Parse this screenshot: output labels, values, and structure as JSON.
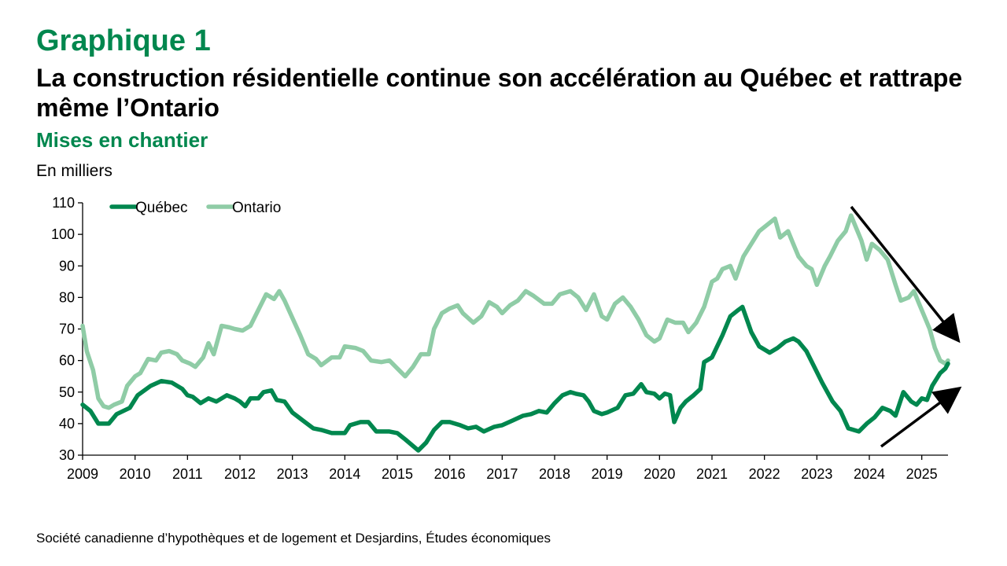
{
  "header": {
    "graph_number": "Graphique 1",
    "title": "La construction résidentielle continue son accélération au Québec et rattrape même l’Ontario",
    "subtitle": "Mises en chantier",
    "unit": "En milliers"
  },
  "source": "Société canadienne d’hypothèques et de logement et Desjardins, Études économiques",
  "colors": {
    "quebec": "#00874e",
    "ontario": "#8fcca6",
    "axis": "#000000",
    "arrow": "#000000"
  },
  "chart_data": {
    "type": "line",
    "ylim": [
      30,
      110
    ],
    "yticks": [
      30,
      40,
      50,
      60,
      70,
      80,
      90,
      100,
      110
    ],
    "xlim": [
      2009,
      2025.5
    ],
    "xticks": [
      2009,
      2010,
      2011,
      2012,
      2013,
      2014,
      2015,
      2016,
      2017,
      2018,
      2019,
      2020,
      2021,
      2022,
      2023,
      2024,
      2025
    ],
    "grid": false,
    "legend": "top-left",
    "annotations": [
      "downward-arrow-to-ontario-end",
      "upward-arrow-to-quebec-end"
    ],
    "series": [
      {
        "name": "Québec",
        "color": "#00874e",
        "points": [
          [
            2009.0,
            46
          ],
          [
            2009.15,
            44
          ],
          [
            2009.3,
            40
          ],
          [
            2009.5,
            40
          ],
          [
            2009.65,
            43
          ],
          [
            2009.9,
            45
          ],
          [
            2010.05,
            49
          ],
          [
            2010.3,
            52
          ],
          [
            2010.5,
            53.5
          ],
          [
            2010.7,
            53
          ],
          [
            2010.9,
            51
          ],
          [
            2011.0,
            49
          ],
          [
            2011.1,
            48.5
          ],
          [
            2011.25,
            46.5
          ],
          [
            2011.4,
            48
          ],
          [
            2011.55,
            47
          ],
          [
            2011.75,
            49
          ],
          [
            2011.9,
            48
          ],
          [
            2012.0,
            47
          ],
          [
            2012.1,
            45.5
          ],
          [
            2012.2,
            48
          ],
          [
            2012.35,
            48
          ],
          [
            2012.45,
            50
          ],
          [
            2012.6,
            50.5
          ],
          [
            2012.7,
            47.5
          ],
          [
            2012.85,
            47
          ],
          [
            2013.0,
            43.5
          ],
          [
            2013.2,
            41
          ],
          [
            2013.4,
            38.5
          ],
          [
            2013.55,
            38
          ],
          [
            2013.75,
            37
          ],
          [
            2014.0,
            37
          ],
          [
            2014.1,
            39.5
          ],
          [
            2014.3,
            40.5
          ],
          [
            2014.45,
            40.5
          ],
          [
            2014.6,
            37.5
          ],
          [
            2014.85,
            37.5
          ],
          [
            2015.0,
            37
          ],
          [
            2015.15,
            35
          ],
          [
            2015.4,
            31.5
          ],
          [
            2015.55,
            34
          ],
          [
            2015.7,
            38
          ],
          [
            2015.85,
            40.5
          ],
          [
            2016.0,
            40.5
          ],
          [
            2016.2,
            39.5
          ],
          [
            2016.35,
            38.5
          ],
          [
            2016.5,
            39
          ],
          [
            2016.65,
            37.5
          ],
          [
            2016.85,
            39
          ],
          [
            2017.0,
            39.5
          ],
          [
            2017.2,
            41
          ],
          [
            2017.4,
            42.5
          ],
          [
            2017.55,
            43
          ],
          [
            2017.7,
            44
          ],
          [
            2017.85,
            43.5
          ],
          [
            2018.0,
            46.5
          ],
          [
            2018.15,
            49
          ],
          [
            2018.3,
            50
          ],
          [
            2018.4,
            49.5
          ],
          [
            2018.55,
            49
          ],
          [
            2018.65,
            47
          ],
          [
            2018.75,
            44
          ],
          [
            2018.9,
            43
          ],
          [
            2019.0,
            43.5
          ],
          [
            2019.2,
            45
          ],
          [
            2019.35,
            49
          ],
          [
            2019.5,
            49.5
          ],
          [
            2019.65,
            52.5
          ],
          [
            2019.75,
            50
          ],
          [
            2019.9,
            49.5
          ],
          [
            2020.0,
            48
          ],
          [
            2020.1,
            49.5
          ],
          [
            2020.2,
            49
          ],
          [
            2020.28,
            40.5
          ],
          [
            2020.4,
            45
          ],
          [
            2020.5,
            47
          ],
          [
            2020.65,
            49
          ],
          [
            2020.78,
            51
          ],
          [
            2020.85,
            59.5
          ],
          [
            2021.0,
            61
          ],
          [
            2021.2,
            68
          ],
          [
            2021.35,
            74
          ],
          [
            2021.5,
            76
          ],
          [
            2021.58,
            77
          ],
          [
            2021.75,
            69
          ],
          [
            2021.9,
            64.5
          ],
          [
            2022.0,
            63.5
          ],
          [
            2022.1,
            62.5
          ],
          [
            2022.25,
            64
          ],
          [
            2022.4,
            66
          ],
          [
            2022.55,
            67
          ],
          [
            2022.65,
            66
          ],
          [
            2022.8,
            63
          ],
          [
            2022.95,
            58
          ],
          [
            2023.1,
            53
          ],
          [
            2023.3,
            47
          ],
          [
            2023.45,
            44
          ],
          [
            2023.6,
            38.5
          ],
          [
            2023.8,
            37.5
          ],
          [
            2023.95,
            40
          ],
          [
            2024.1,
            42
          ],
          [
            2024.25,
            45
          ],
          [
            2024.4,
            44
          ],
          [
            2024.5,
            42.5
          ],
          [
            2024.65,
            50
          ],
          [
            2024.8,
            47
          ],
          [
            2024.9,
            46
          ],
          [
            2025.0,
            48
          ],
          [
            2025.1,
            47.5
          ],
          [
            2025.2,
            52
          ],
          [
            2025.35,
            56
          ],
          [
            2025.45,
            57.5
          ],
          [
            2025.5,
            59
          ]
        ]
      },
      {
        "name": "Ontario",
        "color": "#8fcca6",
        "points": [
          [
            2009.0,
            71
          ],
          [
            2009.08,
            63
          ],
          [
            2009.2,
            57
          ],
          [
            2009.3,
            48
          ],
          [
            2009.4,
            45.5
          ],
          [
            2009.5,
            45
          ],
          [
            2009.6,
            46
          ],
          [
            2009.75,
            47
          ],
          [
            2009.85,
            52
          ],
          [
            2010.0,
            55
          ],
          [
            2010.1,
            56
          ],
          [
            2010.25,
            60.5
          ],
          [
            2010.4,
            60
          ],
          [
            2010.5,
            62.5
          ],
          [
            2010.65,
            63
          ],
          [
            2010.8,
            62
          ],
          [
            2010.9,
            60
          ],
          [
            2011.05,
            59
          ],
          [
            2011.15,
            58
          ],
          [
            2011.3,
            61
          ],
          [
            2011.4,
            65.5
          ],
          [
            2011.5,
            62
          ],
          [
            2011.65,
            71
          ],
          [
            2011.8,
            70.5
          ],
          [
            2011.9,
            70
          ],
          [
            2012.05,
            69.5
          ],
          [
            2012.2,
            71
          ],
          [
            2012.35,
            76
          ],
          [
            2012.5,
            81
          ],
          [
            2012.65,
            79.5
          ],
          [
            2012.75,
            82
          ],
          [
            2012.85,
            79
          ],
          [
            2013.0,
            73.5
          ],
          [
            2013.15,
            68
          ],
          [
            2013.3,
            62
          ],
          [
            2013.45,
            60.5
          ],
          [
            2013.55,
            58.5
          ],
          [
            2013.75,
            61
          ],
          [
            2013.9,
            61
          ],
          [
            2014.0,
            64.5
          ],
          [
            2014.2,
            64
          ],
          [
            2014.35,
            63
          ],
          [
            2014.5,
            60
          ],
          [
            2014.7,
            59.5
          ],
          [
            2014.85,
            60
          ],
          [
            2015.0,
            57.5
          ],
          [
            2015.15,
            55
          ],
          [
            2015.3,
            58
          ],
          [
            2015.45,
            62
          ],
          [
            2015.6,
            62
          ],
          [
            2015.7,
            70
          ],
          [
            2015.85,
            75
          ],
          [
            2016.0,
            76.5
          ],
          [
            2016.15,
            77.5
          ],
          [
            2016.25,
            75
          ],
          [
            2016.45,
            72
          ],
          [
            2016.6,
            74
          ],
          [
            2016.75,
            78.5
          ],
          [
            2016.9,
            77
          ],
          [
            2017.0,
            75
          ],
          [
            2017.15,
            77.5
          ],
          [
            2017.3,
            79
          ],
          [
            2017.45,
            82
          ],
          [
            2017.6,
            80.5
          ],
          [
            2017.8,
            78
          ],
          [
            2017.95,
            78
          ],
          [
            2018.1,
            81
          ],
          [
            2018.3,
            82
          ],
          [
            2018.45,
            80
          ],
          [
            2018.6,
            76
          ],
          [
            2018.75,
            81
          ],
          [
            2018.9,
            74
          ],
          [
            2019.0,
            73
          ],
          [
            2019.15,
            78
          ],
          [
            2019.3,
            80
          ],
          [
            2019.45,
            77
          ],
          [
            2019.6,
            73
          ],
          [
            2019.75,
            68
          ],
          [
            2019.9,
            66
          ],
          [
            2020.0,
            67
          ],
          [
            2020.15,
            73
          ],
          [
            2020.3,
            72
          ],
          [
            2020.45,
            72
          ],
          [
            2020.55,
            69
          ],
          [
            2020.7,
            72
          ],
          [
            2020.85,
            77
          ],
          [
            2021.0,
            85
          ],
          [
            2021.1,
            86
          ],
          [
            2021.2,
            89
          ],
          [
            2021.35,
            90
          ],
          [
            2021.45,
            86
          ],
          [
            2021.6,
            93
          ],
          [
            2021.75,
            97
          ],
          [
            2021.9,
            101
          ],
          [
            2022.05,
            103
          ],
          [
            2022.2,
            105
          ],
          [
            2022.3,
            99
          ],
          [
            2022.45,
            101
          ],
          [
            2022.55,
            97
          ],
          [
            2022.65,
            93
          ],
          [
            2022.8,
            90
          ],
          [
            2022.9,
            89
          ],
          [
            2023.0,
            84
          ],
          [
            2023.15,
            90
          ],
          [
            2023.25,
            93
          ],
          [
            2023.4,
            98
          ],
          [
            2023.55,
            101
          ],
          [
            2023.65,
            106
          ],
          [
            2023.75,
            102
          ],
          [
            2023.85,
            98
          ],
          [
            2023.95,
            92
          ],
          [
            2024.05,
            97
          ],
          [
            2024.2,
            95
          ],
          [
            2024.35,
            92
          ],
          [
            2024.5,
            84
          ],
          [
            2024.6,
            79
          ],
          [
            2024.75,
            80
          ],
          [
            2024.85,
            82
          ],
          [
            2024.95,
            78
          ],
          [
            2025.05,
            74
          ],
          [
            2025.15,
            70
          ],
          [
            2025.25,
            64
          ],
          [
            2025.35,
            60
          ],
          [
            2025.45,
            59
          ],
          [
            2025.5,
            60
          ]
        ]
      }
    ]
  }
}
